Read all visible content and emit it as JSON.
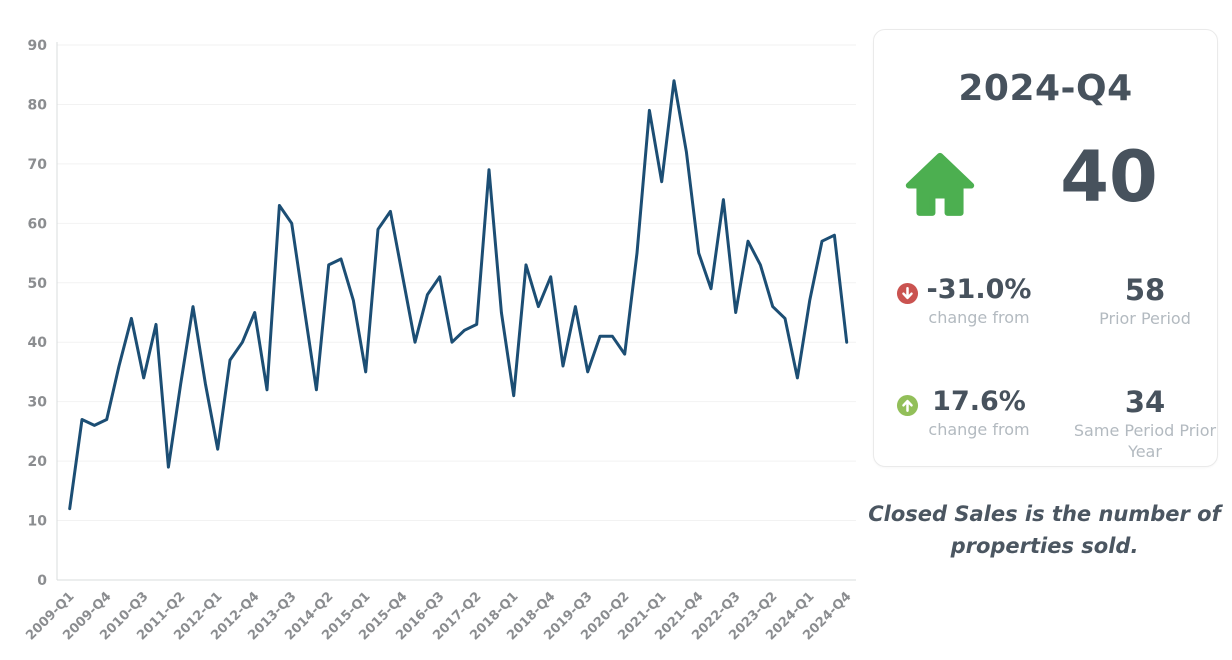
{
  "panel": {
    "title": "2024-Q4",
    "current_value": "40",
    "prior": {
      "pct": "-31.0%",
      "caption": "change from",
      "value": "58",
      "label": "Prior Period"
    },
    "prior_year": {
      "pct": "17.6%",
      "caption": "change from",
      "value": "34",
      "label": "Same Period Prior Year"
    },
    "footnote": "Closed Sales is the number of properties sold.",
    "icons": {
      "house_icon": "house-icon",
      "down_arrow_icon": "circle-down-arrow-icon",
      "up_arrow_icon": "circle-up-arrow-icon"
    }
  },
  "colors": {
    "line": "#1c4e74",
    "title_text": "#47525d",
    "house_green": "#4caf50",
    "down_red": "#ca5350",
    "up_green": "#92bf59",
    "caption_gray": "#b3bac0",
    "axis_text": "#8b8d90",
    "gridline": "#f2f2f2",
    "axis_line": "#d9dcde"
  },
  "chart_data": {
    "type": "line",
    "title": "",
    "xlabel": "",
    "ylabel": "",
    "ylim": [
      0,
      90
    ],
    "y_ticks": [
      0,
      10,
      20,
      30,
      40,
      50,
      60,
      70,
      80,
      90
    ],
    "grid": true,
    "legend": "none",
    "x": [
      "2009-Q1",
      "2009-Q2",
      "2009-Q3",
      "2009-Q4",
      "2010-Q1",
      "2010-Q2",
      "2010-Q3",
      "2010-Q4",
      "2011-Q1",
      "2011-Q2",
      "2011-Q3",
      "2011-Q4",
      "2012-Q1",
      "2012-Q2",
      "2012-Q3",
      "2012-Q4",
      "2013-Q1",
      "2013-Q2",
      "2013-Q3",
      "2013-Q4",
      "2014-Q1",
      "2014-Q2",
      "2014-Q3",
      "2014-Q4",
      "2015-Q1",
      "2015-Q2",
      "2015-Q3",
      "2015-Q4",
      "2016-Q1",
      "2016-Q2",
      "2016-Q3",
      "2016-Q4",
      "2017-Q1",
      "2017-Q2",
      "2017-Q3",
      "2017-Q4",
      "2018-Q1",
      "2018-Q2",
      "2018-Q3",
      "2018-Q4",
      "2019-Q1",
      "2019-Q2",
      "2019-Q3",
      "2019-Q4",
      "2020-Q1",
      "2020-Q2",
      "2020-Q3",
      "2020-Q4",
      "2021-Q1",
      "2021-Q2",
      "2021-Q3",
      "2021-Q4",
      "2022-Q1",
      "2022-Q2",
      "2022-Q3",
      "2022-Q4",
      "2023-Q1",
      "2023-Q2",
      "2023-Q3",
      "2023-Q4",
      "2024-Q1",
      "2024-Q2",
      "2024-Q3",
      "2024-Q4"
    ],
    "values": [
      12,
      27,
      26,
      27,
      36,
      44,
      34,
      43,
      19,
      33,
      46,
      33,
      22,
      37,
      40,
      45,
      32,
      63,
      60,
      46,
      32,
      53,
      54,
      47,
      35,
      59,
      62,
      51,
      40,
      48,
      51,
      40,
      42,
      43,
      69,
      45,
      31,
      53,
      46,
      51,
      36,
      46,
      35,
      41,
      41,
      38,
      55,
      79,
      67,
      84,
      72,
      55,
      49,
      64,
      45,
      57,
      53,
      46,
      44,
      34,
      47,
      57,
      58,
      40
    ],
    "x_tick_every": 3,
    "x_tick_labels": [
      "2009-Q1",
      "2009-Q4",
      "2010-Q3",
      "2011-Q2",
      "2012-Q1",
      "2012-Q4",
      "2013-Q3",
      "2014-Q2",
      "2015-Q1",
      "2015-Q4",
      "2016-Q3",
      "2017-Q2",
      "2018-Q1",
      "2018-Q4",
      "2019-Q3",
      "2020-Q2",
      "2021-Q1",
      "2021-Q4",
      "2022-Q3",
      "2023-Q2",
      "2024-Q1",
      "2024-Q4"
    ]
  }
}
